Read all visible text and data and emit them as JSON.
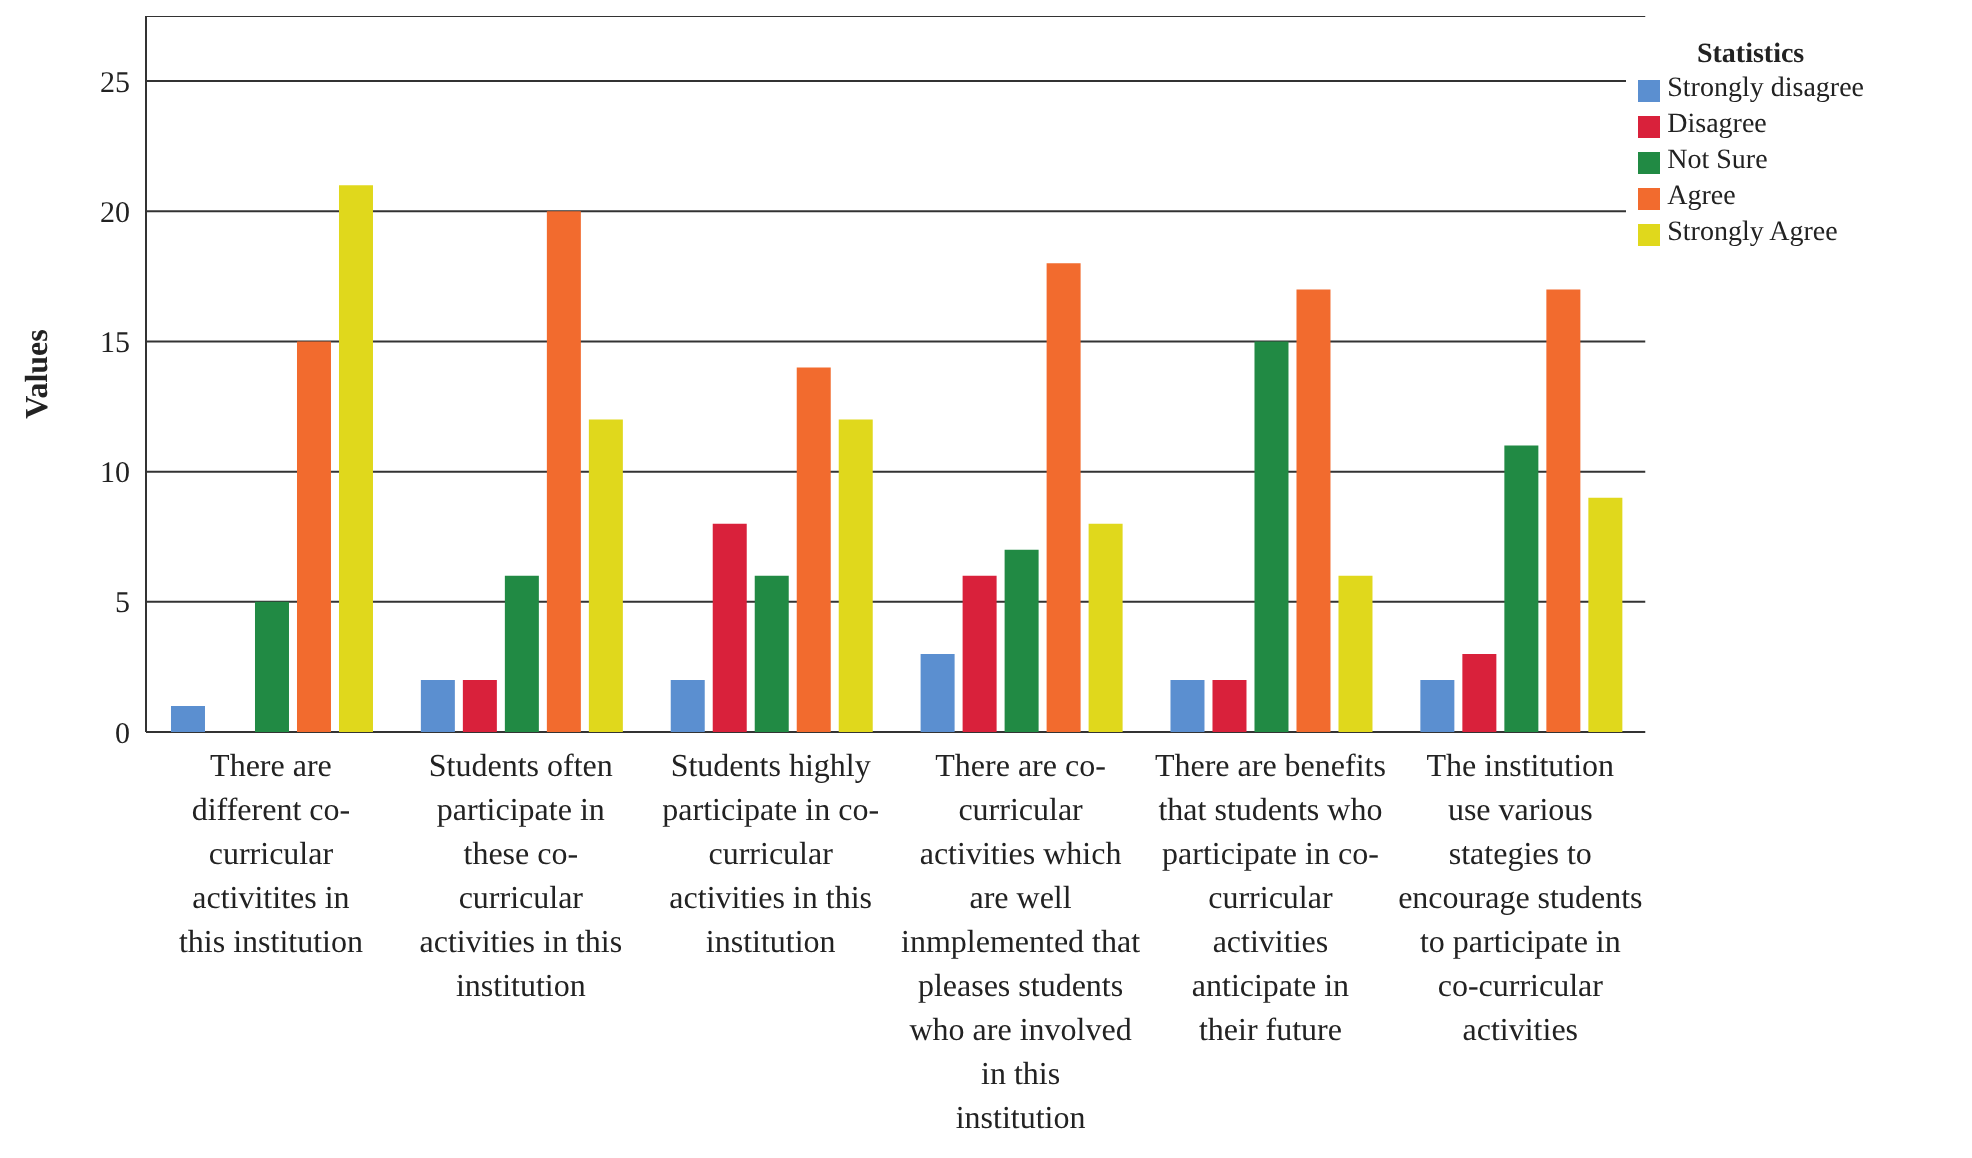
{
  "chart_data": {
    "type": "bar",
    "ylabel": "Values",
    "legend_title": "Statistics",
    "categories": [
      "There are different co-curricular activitites in this institution",
      "Students often participate in these co-curricular activities in this institution",
      "Students highly participate in co-curricular activities in this institution",
      "There are co-curricular activities which are well inmplemented that pleases students who are involved in this institution",
      "There are benefits that students who participate in co-curricular activities anticipate in their future",
      "The institution use various stategies to encourage students to participate in co-curricular activities"
    ],
    "series": [
      {
        "name": "Strongly disagree",
        "color": "#5b8fd0",
        "values": [
          1,
          2,
          2,
          3,
          2,
          2
        ]
      },
      {
        "name": "Disagree",
        "color": "#d9213b",
        "values": [
          0,
          2,
          8,
          6,
          2,
          3
        ]
      },
      {
        "name": "Not Sure",
        "color": "#218a44",
        "values": [
          5,
          6,
          6,
          7,
          15,
          11
        ]
      },
      {
        "name": "Agree",
        "color": "#f26b2e",
        "values": [
          15,
          20,
          14,
          18,
          17,
          17
        ]
      },
      {
        "name": "Strongly Agree",
        "color": "#e0d81c",
        "values": [
          21,
          12,
          12,
          8,
          6,
          9
        ]
      }
    ],
    "ylim": [
      0,
      27.5
    ],
    "yticks": [
      0,
      5,
      10,
      15,
      20,
      25
    ],
    "grid": "y",
    "legend": "top right"
  }
}
